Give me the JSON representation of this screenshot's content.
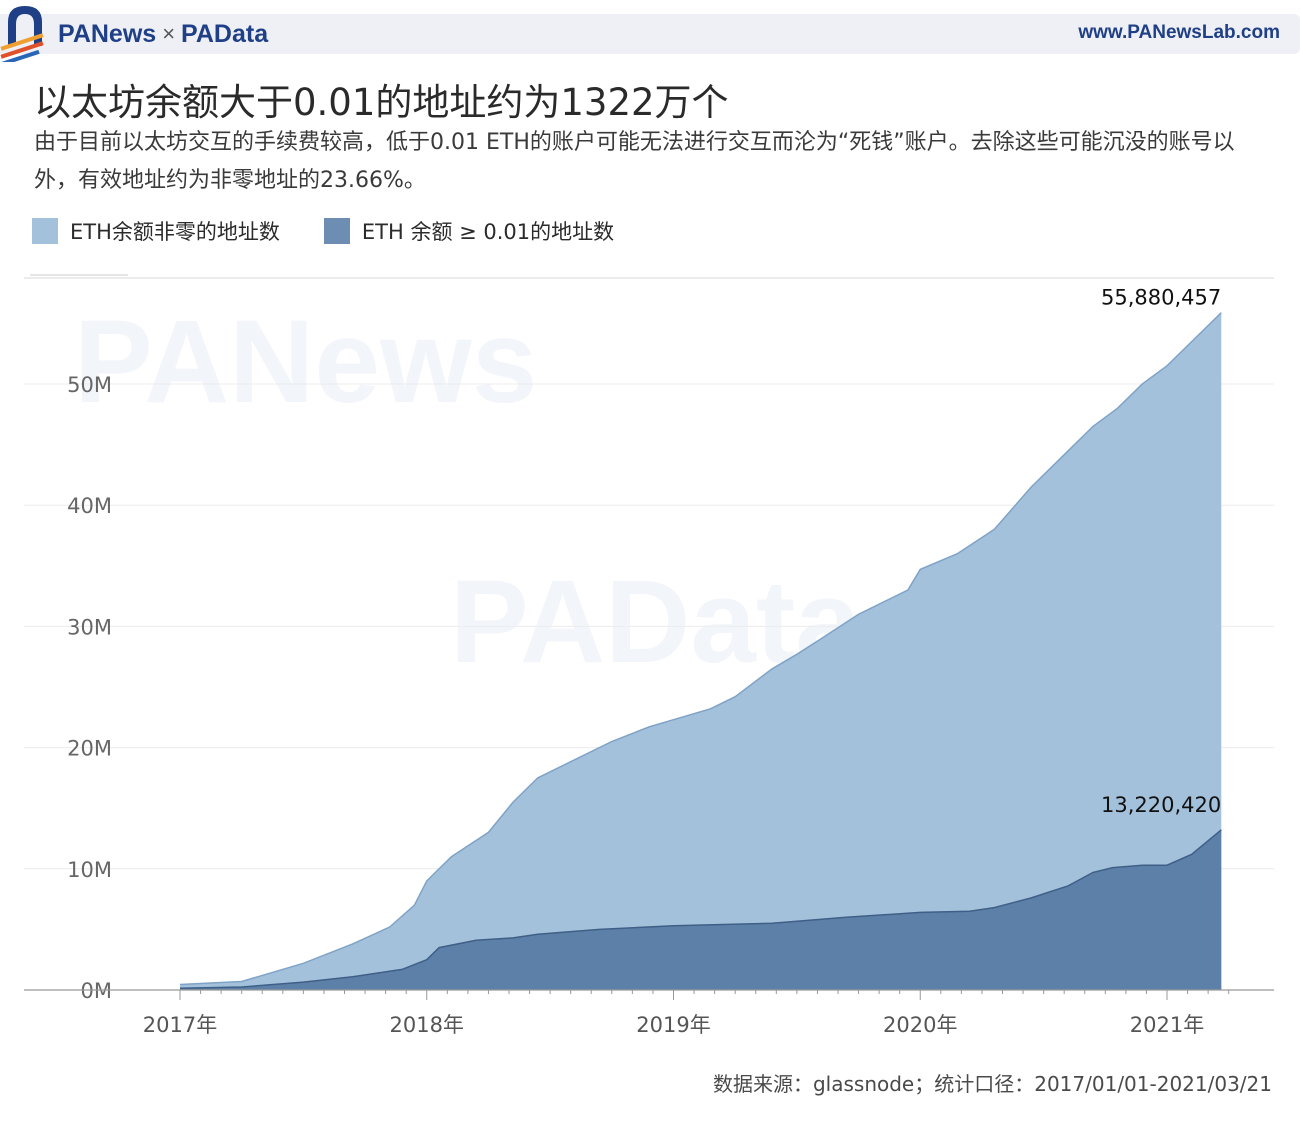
{
  "header": {
    "brand_left": "PANews",
    "brand_sep": "×",
    "brand_right": "PAData",
    "site_url": "www.PANewsLab.com"
  },
  "title": "以太坊余额大于0.01的地址约为1322万个",
  "subtitle": "由于目前以太坊交互的手续费较高，低于0.01 ETH的账户可能无法进行交互而沦为“死钱”账户。去除这些可能沉没的账号以外，有效地址约为非零地址的23.66%。",
  "legend": {
    "nonzero_label": "ETH余额非零的地址数",
    "above_label": "ETH 余额 ≥ 0.01的地址数"
  },
  "watermarks": {
    "panews": "PANews",
    "padata": "PAData"
  },
  "colors": {
    "nonzero_area": "#a4c1dc",
    "nonzero_line": "#7fa3c6",
    "above_area": "#5d80a8",
    "above_line": "#3f5f87",
    "brand": "#1f3f86"
  },
  "source": "数据来源：glassnode；统计口径：2017/01/01-2021/03/21",
  "chart_data": {
    "type": "area",
    "x_unit": "year",
    "ylim": [
      0,
      56000000
    ],
    "xlim": [
      2016.75,
      2021.45
    ],
    "grid": true,
    "yticks": [
      {
        "value": 0,
        "label": "0M"
      },
      {
        "value": 10000000,
        "label": "10M"
      },
      {
        "value": 20000000,
        "label": "20M"
      },
      {
        "value": 30000000,
        "label": "30M"
      },
      {
        "value": 40000000,
        "label": "40M"
      },
      {
        "value": 50000000,
        "label": "50M"
      }
    ],
    "xticks": [
      {
        "value": 2017,
        "label": "2017年"
      },
      {
        "value": 2018,
        "label": "2018年"
      },
      {
        "value": 2019,
        "label": "2019年"
      },
      {
        "value": 2020,
        "label": "2020年"
      },
      {
        "value": 2021,
        "label": "2021年"
      }
    ],
    "series": [
      {
        "name": "ETH余额非零的地址数",
        "x": [
          2017.0,
          2017.25,
          2017.5,
          2017.7,
          2017.85,
          2017.95,
          2018.0,
          2018.1,
          2018.25,
          2018.35,
          2018.45,
          2018.6,
          2018.75,
          2018.9,
          2019.0,
          2019.15,
          2019.25,
          2019.4,
          2019.5,
          2019.6,
          2019.75,
          2019.95,
          2020.0,
          2020.15,
          2020.3,
          2020.45,
          2020.6,
          2020.7,
          2020.8,
          2020.9,
          2021.0,
          2021.1,
          2021.22
        ],
        "values": [
          450000,
          700000,
          2200000,
          3800000,
          5200000,
          7000000,
          9000000,
          11000000,
          13000000,
          15500000,
          17500000,
          19000000,
          20500000,
          21700000,
          22300000,
          23200000,
          24200000,
          26500000,
          27700000,
          29000000,
          31000000,
          33000000,
          34700000,
          36000000,
          38000000,
          41500000,
          44500000,
          46500000,
          48000000,
          50000000,
          51500000,
          53500000,
          55880457
        ],
        "end_label": "55,880,457"
      },
      {
        "name": "ETH 余额 ≥ 0.01的地址数",
        "x": [
          2017.0,
          2017.25,
          2017.5,
          2017.7,
          2017.9,
          2018.0,
          2018.05,
          2018.2,
          2018.35,
          2018.45,
          2018.7,
          2019.0,
          2019.4,
          2019.7,
          2020.0,
          2020.2,
          2020.3,
          2020.45,
          2020.6,
          2020.7,
          2020.78,
          2020.9,
          2021.0,
          2021.1,
          2021.22
        ],
        "values": [
          150000,
          250000,
          650000,
          1100000,
          1700000,
          2500000,
          3500000,
          4100000,
          4300000,
          4600000,
          5000000,
          5300000,
          5500000,
          6000000,
          6400000,
          6500000,
          6800000,
          7600000,
          8600000,
          9700000,
          10100000,
          10300000,
          10300000,
          11200000,
          13220420
        ],
        "end_label": "13,220,420"
      }
    ]
  }
}
